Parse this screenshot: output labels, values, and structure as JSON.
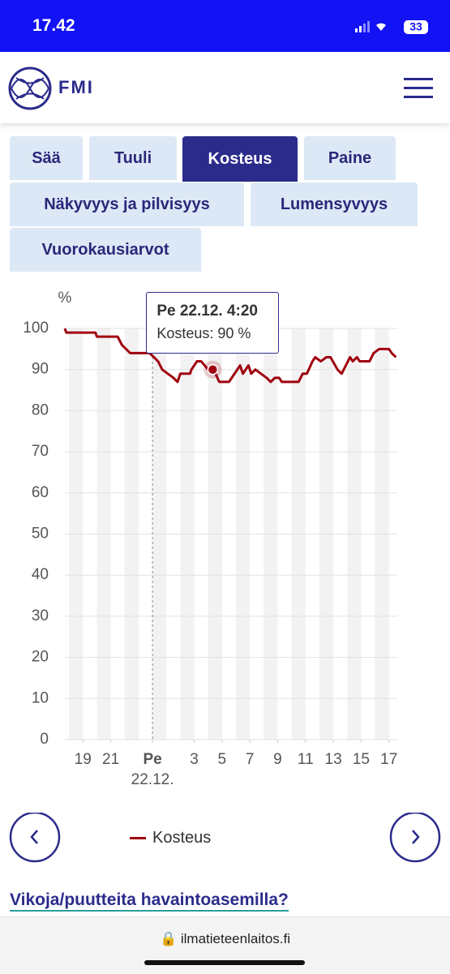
{
  "status": {
    "time": "17.42",
    "battery": "33"
  },
  "header": {
    "logo_text": "FMI"
  },
  "tabs": [
    {
      "label": "Sää",
      "active": false
    },
    {
      "label": "Tuuli",
      "active": false
    },
    {
      "label": "Kosteus",
      "active": true
    },
    {
      "label": "Paine",
      "active": false
    },
    {
      "label": "Näkyvyys ja pilvisyys",
      "active": false
    },
    {
      "label": "Lumensyvyys",
      "active": false
    },
    {
      "label": "Vuorokausiarvot",
      "active": false
    }
  ],
  "chart_data": {
    "type": "line",
    "ylabel": "%",
    "ylim": [
      0,
      100
    ],
    "yticks": [
      0,
      10,
      20,
      30,
      40,
      50,
      60,
      70,
      80,
      90,
      100
    ],
    "xlim": [
      17.7,
      41.6
    ],
    "xticks": [
      {
        "value": 19,
        "label": "19"
      },
      {
        "value": 21,
        "label": "21"
      },
      {
        "value": 24,
        "label": "Pe",
        "sublabel": "22.12."
      },
      {
        "value": 27,
        "label": "3"
      },
      {
        "value": 29,
        "label": "5"
      },
      {
        "value": 31,
        "label": "7"
      },
      {
        "value": 33,
        "label": "9"
      },
      {
        "value": 35,
        "label": "11"
      },
      {
        "value": 37,
        "label": "13"
      },
      {
        "value": 39,
        "label": "15"
      },
      {
        "value": 41,
        "label": "17"
      }
    ],
    "grid": true,
    "x": [
      17.7,
      17.8,
      19.9,
      20.0,
      21.5,
      21.8,
      22.4,
      23.8,
      24.1,
      24.4,
      24.7,
      25.1,
      25.5,
      25.8,
      26.0,
      26.7,
      26.8,
      27.2,
      27.5,
      28.0,
      28.4,
      28.8,
      29.5,
      29.9,
      30.3,
      30.5,
      30.9,
      31.1,
      31.4,
      31.8,
      32.2,
      32.5,
      32.8,
      33.1,
      33.3,
      34.5,
      34.8,
      35.1,
      35.5,
      35.7,
      36.1,
      36.5,
      36.8,
      37.3,
      37.6,
      37.9,
      38.2,
      38.4,
      38.7,
      38.9,
      39.6,
      39.9,
      40.3,
      41.0,
      41.2,
      41.5
    ],
    "series": [
      {
        "name": "Kosteus",
        "color": "#a0000f",
        "values": [
          100,
          99,
          99,
          98,
          98,
          96,
          94,
          94,
          93,
          92,
          90,
          89,
          88,
          87,
          89,
          89,
          90,
          92,
          92,
          90,
          90,
          87,
          87,
          89,
          91,
          89,
          91,
          89,
          90,
          89,
          88,
          87,
          88,
          88,
          87,
          87,
          89,
          89,
          92,
          93,
          92,
          93,
          93,
          90,
          89,
          91,
          93,
          92,
          93,
          92,
          92,
          94,
          95,
          95,
          94,
          93
        ]
      }
    ],
    "tooltip": {
      "title": "Pe 22.12. 4:20",
      "text": "Kosteus: 90 %",
      "x": 28.33,
      "value": 90
    }
  },
  "link": "Vikoja/puutteita havaintoasemilla?",
  "url": "ilmatieteenlaitos.fi"
}
